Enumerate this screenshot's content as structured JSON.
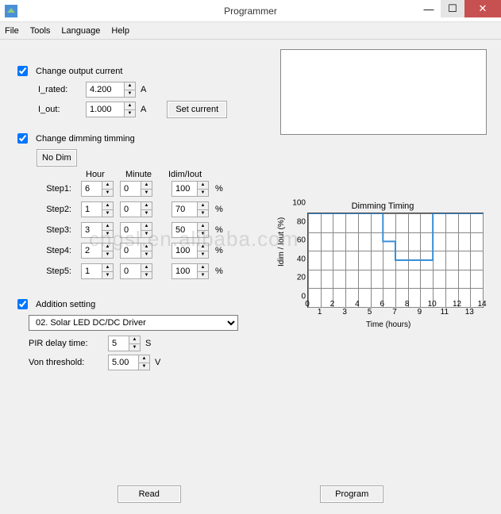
{
  "window": {
    "title": "Programmer"
  },
  "menu": {
    "file": "File",
    "tools": "Tools",
    "language": "Language",
    "help": "Help"
  },
  "output_current": {
    "enabled": true,
    "label": "Change output current",
    "i_rated_label": "I_rated:",
    "i_rated": "4.200",
    "i_rated_unit": "A",
    "i_out_label": "I_out:",
    "i_out": "1.000",
    "i_out_unit": "A",
    "set_btn": "Set current"
  },
  "dimming": {
    "enabled": true,
    "label": "Change dimming timming",
    "no_dim_btn": "No Dim",
    "hdr_hour": "Hour",
    "hdr_min": "Minute",
    "hdr_ratio": "Idim/Iout",
    "pct": "%",
    "steps": [
      {
        "label": "Step1:",
        "hour": "6",
        "min": "0",
        "ratio": "100"
      },
      {
        "label": "Step2:",
        "hour": "1",
        "min": "0",
        "ratio": "70"
      },
      {
        "label": "Step3:",
        "hour": "3",
        "min": "0",
        "ratio": "50"
      },
      {
        "label": "Step4:",
        "hour": "2",
        "min": "0",
        "ratio": "100"
      },
      {
        "label": "Step5:",
        "hour": "1",
        "min": "0",
        "ratio": "100"
      }
    ]
  },
  "chart": {
    "title": "Dimming Timing",
    "ylabel": "Idim / Iout (%)",
    "xlabel": "Time (hours)",
    "xlim": [
      0,
      14
    ],
    "ylim": [
      0,
      100
    ],
    "xticks": [
      0,
      1,
      2,
      3,
      4,
      5,
      6,
      7,
      8,
      9,
      10,
      11,
      12,
      13,
      14
    ],
    "yticks": [
      0,
      20,
      40,
      60,
      80,
      100
    ],
    "line_color": "#3a8fd8",
    "grid_color": "#888888",
    "background": "#ffffff",
    "series": [
      {
        "x": 0,
        "y": 100
      },
      {
        "x": 6,
        "y": 100
      },
      {
        "x": 6,
        "y": 70
      },
      {
        "x": 7,
        "y": 70
      },
      {
        "x": 7,
        "y": 50
      },
      {
        "x": 10,
        "y": 50
      },
      {
        "x": 10,
        "y": 100
      },
      {
        "x": 14,
        "y": 100
      }
    ]
  },
  "addition": {
    "enabled": true,
    "label": "Addition setting",
    "combo": "02. Solar LED DC/DC Driver",
    "pir_label": "PIR delay time:",
    "pir": "5",
    "pir_unit": "S",
    "von_label": "Von threshold:",
    "von": "5.00",
    "von_unit": "V"
  },
  "bottom": {
    "read": "Read",
    "program": "Program"
  },
  "watermark": "cngsl.en.alibaba.com"
}
